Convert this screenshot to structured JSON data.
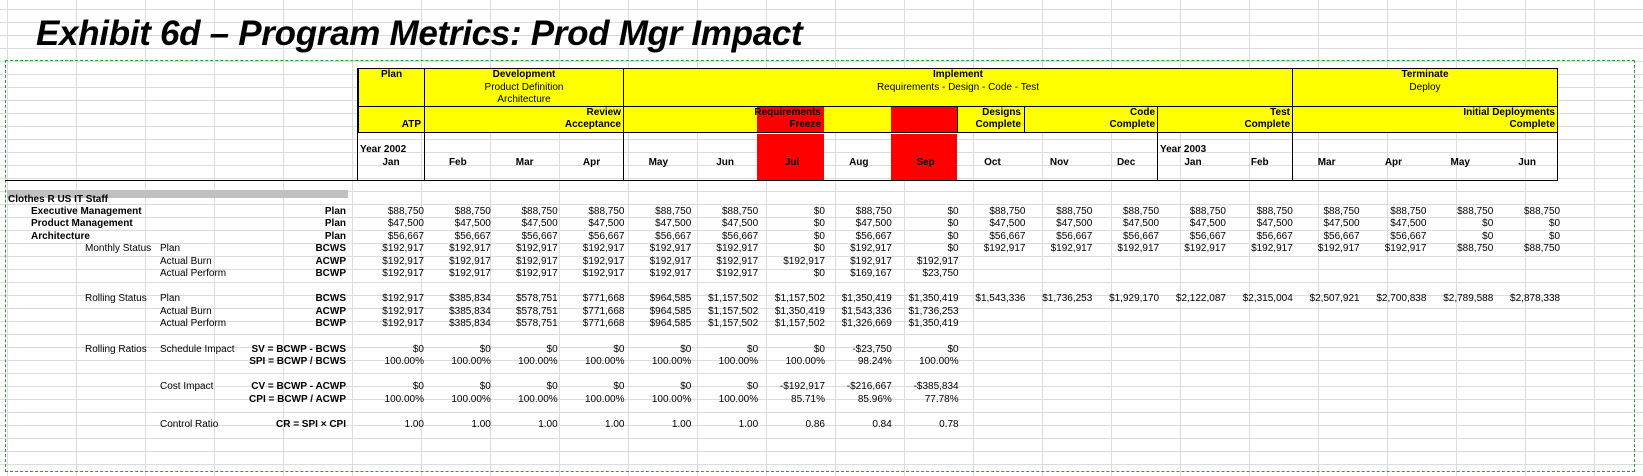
{
  "title": "Exhibit 6d – Program Metrics: Prod Mgr Impact",
  "phases": [
    {
      "name": "Plan"
    },
    {
      "name": "Development",
      "sub1": "Product Definition",
      "sub2": "Architecture"
    },
    {
      "name": "Implement",
      "sub1": "Requirements - Design - Code - Test"
    },
    {
      "name": "Terminate",
      "sub1": "Deploy"
    }
  ],
  "milestones": {
    "atp": "ATP",
    "review": "Review",
    "acceptance": "Acceptance",
    "requirements": "Requirements",
    "freeze": "Freeze",
    "designs": "Designs",
    "code": "Code",
    "test": "Test",
    "initial_deployments": "Initial Deployments",
    "complete": "Complete"
  },
  "years": {
    "y2002": "Year 2002",
    "y2003": "Year 2003"
  },
  "months": [
    "Jan",
    "Feb",
    "Mar",
    "Apr",
    "May",
    "Jun",
    "Jul",
    "Aug",
    "Sep",
    "Oct",
    "Nov",
    "Dec",
    "Jan",
    "Feb",
    "Mar",
    "Apr",
    "May",
    "Jun"
  ],
  "group_title": "Clothes R US IT Staff",
  "rows": [
    {
      "c1": "Executive Management",
      "c1bold": true,
      "code": "Plan",
      "values": [
        "$88,750",
        "$88,750",
        "$88,750",
        "$88,750",
        "$88,750",
        "$88,750",
        "$0",
        "$88,750",
        "$0",
        "$88,750",
        "$88,750",
        "$88,750",
        "$88,750",
        "$88,750",
        "$88,750",
        "$88,750",
        "$88,750",
        "$88,750"
      ]
    },
    {
      "c1": "Product Management",
      "c1bold": true,
      "code": "Plan",
      "values": [
        "$47,500",
        "$47,500",
        "$47,500",
        "$47,500",
        "$47,500",
        "$47,500",
        "$0",
        "$47,500",
        "$0",
        "$47,500",
        "$47,500",
        "$47,500",
        "$47,500",
        "$47,500",
        "$47,500",
        "$47,500",
        "$0",
        "$0"
      ]
    },
    {
      "c1": "Architecture",
      "c1bold": true,
      "code": "Plan",
      "values": [
        "$56,667",
        "$56,667",
        "$56,667",
        "$56,667",
        "$56,667",
        "$56,667",
        "$0",
        "$56,667",
        "$0",
        "$56,667",
        "$56,667",
        "$56,667",
        "$56,667",
        "$56,667",
        "$56,667",
        "$56,667",
        "$0",
        "$0"
      ]
    },
    {
      "c2": "Monthly Status",
      "c3": "Plan",
      "code": "BCWS",
      "values": [
        "$192,917",
        "$192,917",
        "$192,917",
        "$192,917",
        "$192,917",
        "$192,917",
        "$0",
        "$192,917",
        "$0",
        "$192,917",
        "$192,917",
        "$192,917",
        "$192,917",
        "$192,917",
        "$192,917",
        "$192,917",
        "$88,750",
        "$88,750"
      ]
    },
    {
      "c3": "Actual Burn",
      "code": "ACWP",
      "values": [
        "$192,917",
        "$192,917",
        "$192,917",
        "$192,917",
        "$192,917",
        "$192,917",
        "$192,917",
        "$192,917",
        "$192,917"
      ]
    },
    {
      "c3": "Actual Perform",
      "code": "BCWP",
      "values": [
        "$192,917",
        "$192,917",
        "$192,917",
        "$192,917",
        "$192,917",
        "$192,917",
        "$0",
        "$169,167",
        "$23,750"
      ]
    },
    {
      "c2": "Rolling Status",
      "c3": "Plan",
      "code": "BCWS",
      "gap": true,
      "values": [
        "$192,917",
        "$385,834",
        "$578,751",
        "$771,668",
        "$964,585",
        "$1,157,502",
        "$1,157,502",
        "$1,350,419",
        "$1,350,419",
        "$1,543,336",
        "$1,736,253",
        "$1,929,170",
        "$2,122,087",
        "$2,315,004",
        "$2,507,921",
        "$2,700,838",
        "$2,789,588",
        "$2,878,338"
      ]
    },
    {
      "c3": "Actual Burn",
      "code": "ACWP",
      "values": [
        "$192,917",
        "$385,834",
        "$578,751",
        "$771,668",
        "$964,585",
        "$1,157,502",
        "$1,350,419",
        "$1,543,336",
        "$1,736,253"
      ]
    },
    {
      "c3": "Actual Perform",
      "code": "BCWP",
      "values": [
        "$192,917",
        "$385,834",
        "$578,751",
        "$771,668",
        "$964,585",
        "$1,157,502",
        "$1,157,502",
        "$1,326,669",
        "$1,350,419"
      ]
    },
    {
      "c2": "Rolling Ratios",
      "c3": "Schedule Impact",
      "code": "SV = BCWP - BCWS",
      "gap": true,
      "values": [
        "$0",
        "$0",
        "$0",
        "$0",
        "$0",
        "$0",
        "$0",
        "-$23,750",
        "$0"
      ]
    },
    {
      "code": "SPI = BCWP / BCWS",
      "values": [
        "100.00%",
        "100.00%",
        "100.00%",
        "100.00%",
        "100.00%",
        "100.00%",
        "100.00%",
        "98.24%",
        "100.00%"
      ]
    },
    {
      "c3": "Cost Impact",
      "code": "CV = BCWP - ACWP",
      "gap": true,
      "values": [
        "$0",
        "$0",
        "$0",
        "$0",
        "$0",
        "$0",
        "-$192,917",
        "-$216,667",
        "-$385,834"
      ]
    },
    {
      "code": "CPI = BCWP / ACWP",
      "values": [
        "100.00%",
        "100.00%",
        "100.00%",
        "100.00%",
        "100.00%",
        "100.00%",
        "85.71%",
        "85.96%",
        "77.78%"
      ]
    },
    {
      "c3": "Control Ratio",
      "code": "CR = SPI × CPI",
      "gap": true,
      "values": [
        "1.00",
        "1.00",
        "1.00",
        "1.00",
        "1.00",
        "1.00",
        "0.86",
        "0.84",
        "0.78"
      ]
    }
  ]
}
